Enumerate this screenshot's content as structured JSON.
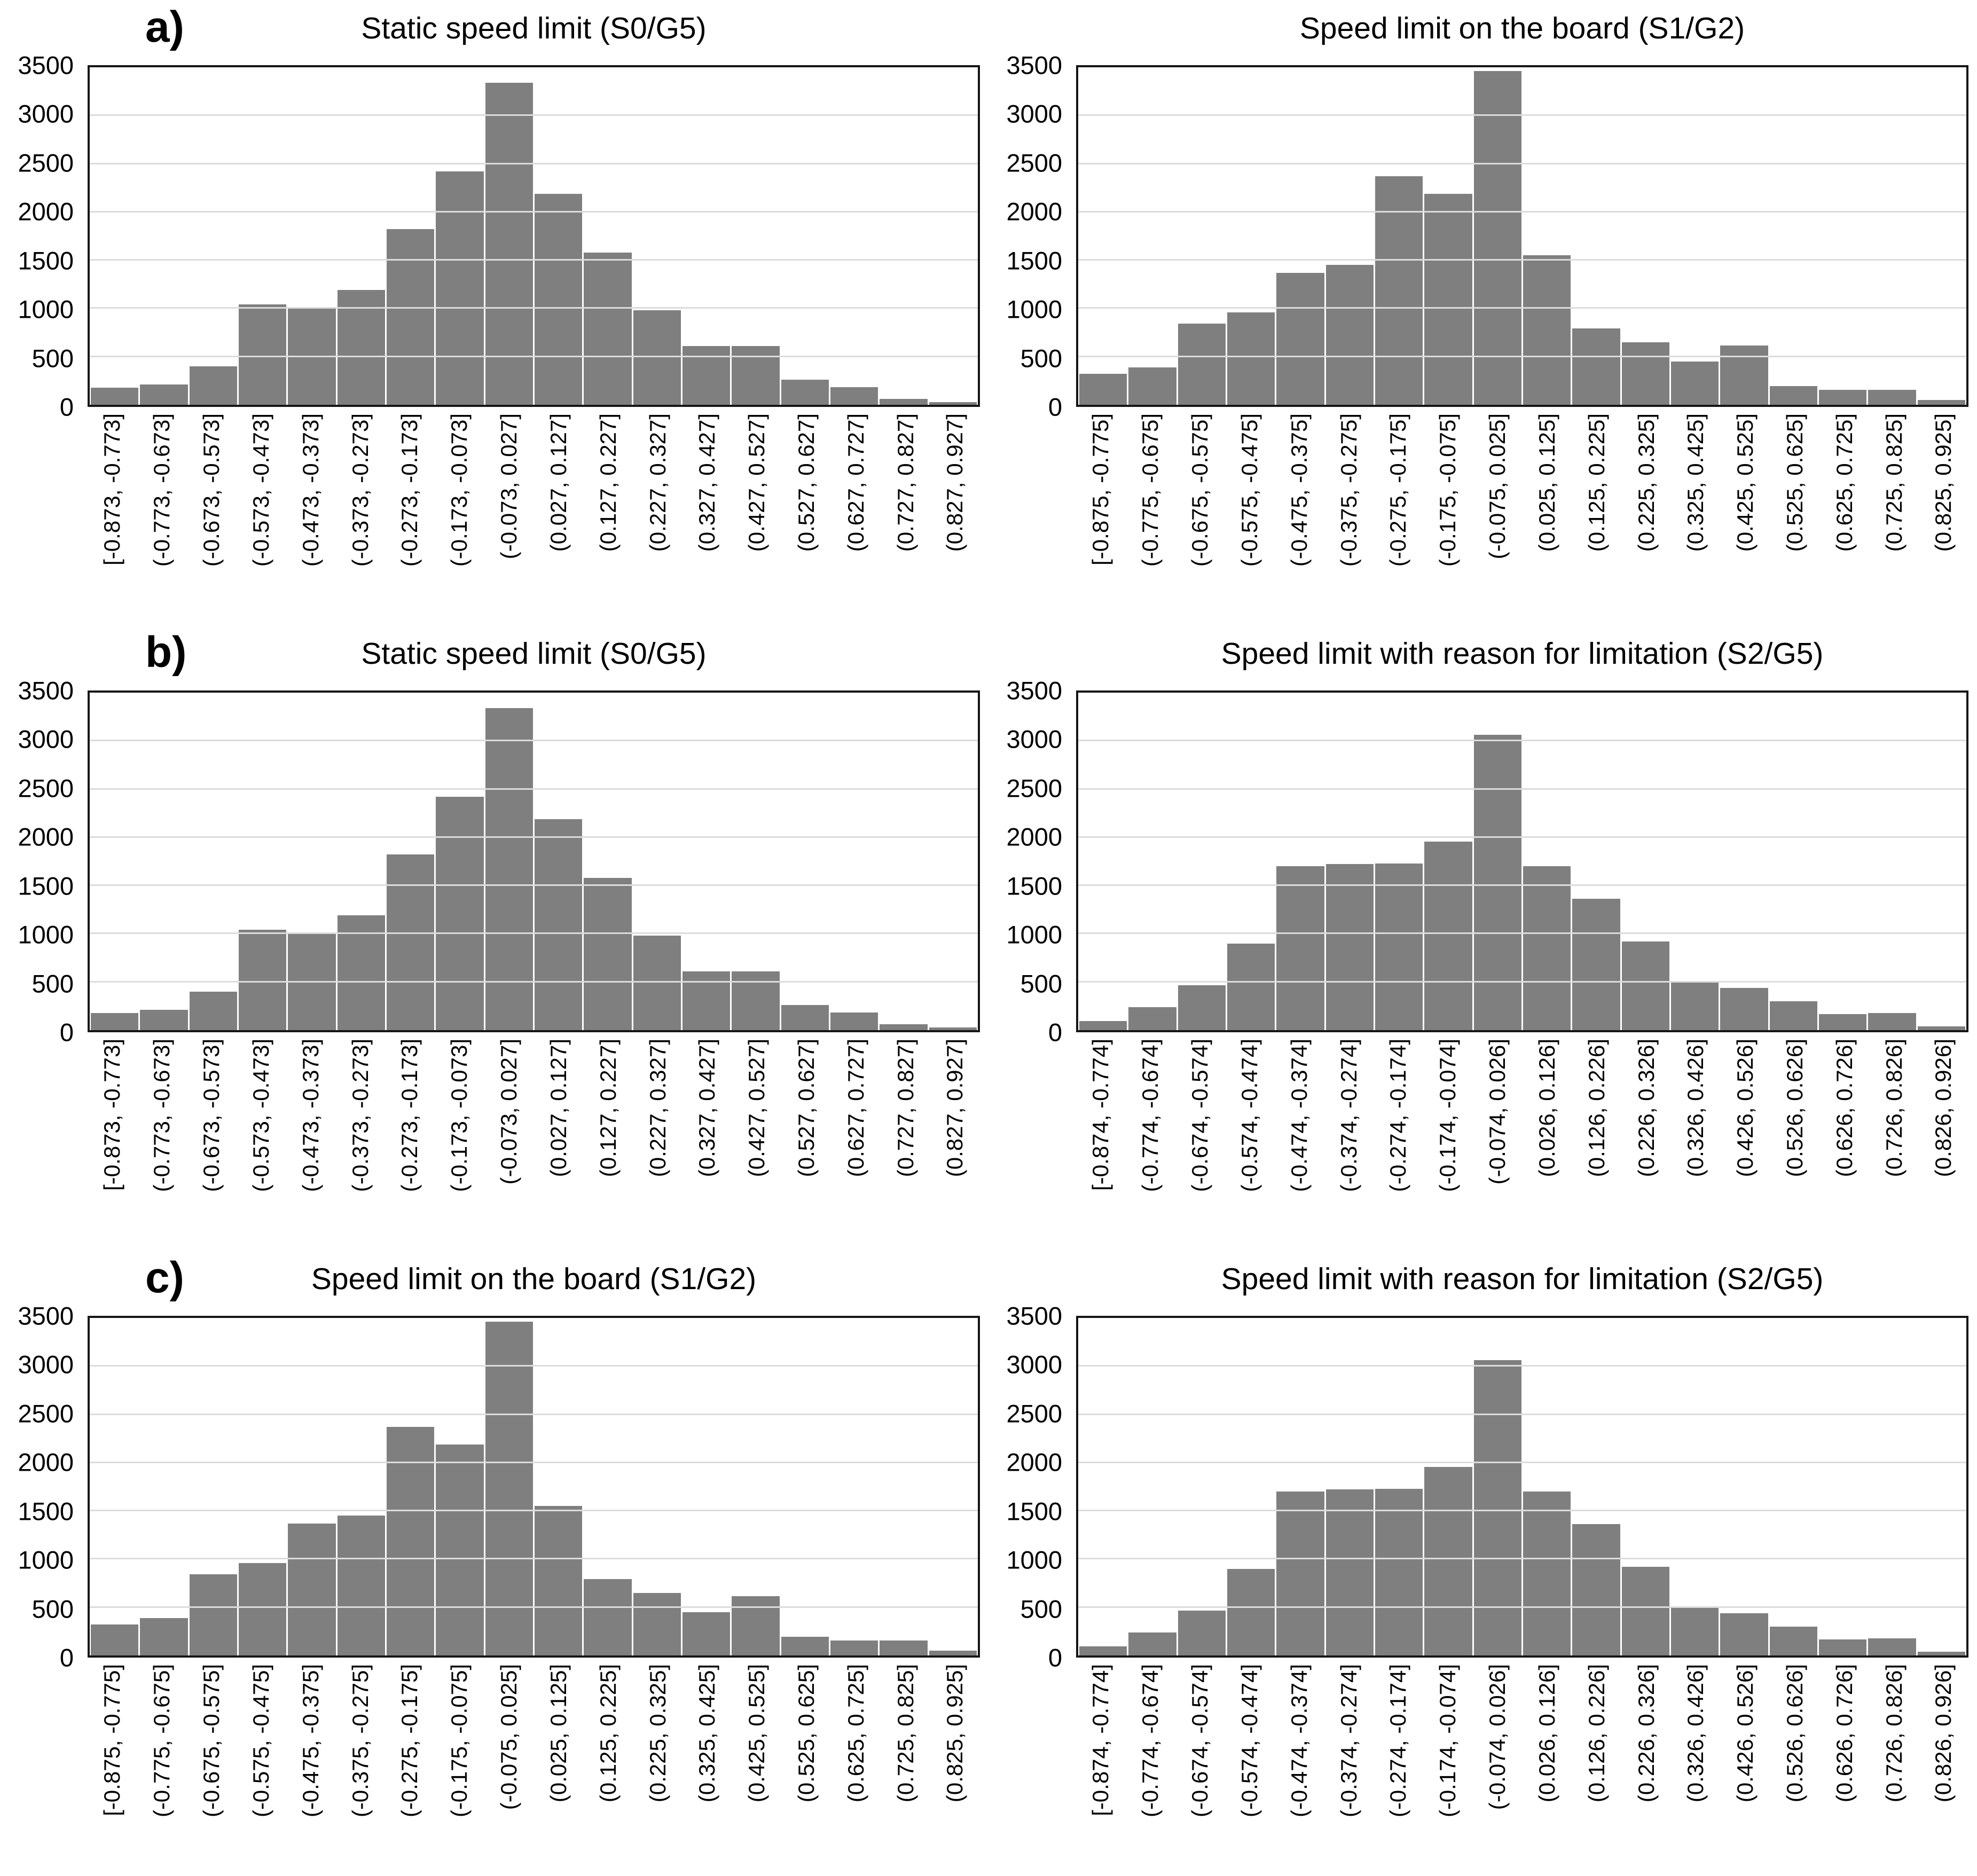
{
  "figure": {
    "background": "#ffffff",
    "bar_color": "#7f7f7f",
    "gridline_color": "#dcdcdc",
    "border_color": "#161616",
    "rows": [
      "a)",
      "b)",
      "c)"
    ]
  },
  "chart_data": [
    {
      "id": "a-left",
      "panel_label": "a)",
      "type": "bar",
      "title": "Static speed limit (S0/G5)",
      "categories": [
        "[-0.873, -0.773]",
        "(-0.773, -0.673]",
        "(-0.673, -0.573]",
        "(-0.573, -0.473]",
        "(-0.473, -0.373]",
        "(-0.373, -0.273]",
        "(-0.273, -0.173]",
        "(-0.173, -0.073]",
        "(-0.073, 0.027]",
        "(0.027, 0.127]",
        "(0.127, 0.227]",
        "(0.227, 0.327]",
        "(0.327, 0.427]",
        "(0.427, 0.527]",
        "(0.527, 0.627]",
        "(0.627, 0.727]",
        "(0.727, 0.827]",
        "(0.827, 0.927]"
      ],
      "values": [
        180,
        210,
        400,
        1040,
        1005,
        1190,
        1820,
        2420,
        3340,
        2190,
        1580,
        980,
        610,
        610,
        260,
        185,
        60,
        30
      ],
      "xlabel": "",
      "ylabel": "",
      "ylim": [
        0,
        3500
      ],
      "ytick_step": 500,
      "yticks": [
        3500,
        3000,
        2500,
        2000,
        1500,
        1000,
        500,
        0
      ],
      "grid": true,
      "legend": "none",
      "bar_color": "#7f7f7f"
    },
    {
      "id": "a-right",
      "panel_label": "",
      "type": "bar",
      "title": "Speed limit on the board (S1/G2)",
      "categories": [
        "[-0.875, -0.775]",
        "(-0.775, -0.675]",
        "(-0.675, -0.575]",
        "(-0.575, -0.475]",
        "(-0.475, -0.375]",
        "(-0.375, -0.275]",
        "(-0.275, -0.175]",
        "(-0.175, -0.075]",
        "(-0.075, 0.025]",
        "(0.025, 0.125]",
        "(0.125, 0.225]",
        "(0.225, 0.325]",
        "(0.325, 0.425]",
        "(0.425, 0.525]",
        "(0.525, 0.625]",
        "(0.625, 0.725]",
        "(0.725, 0.825]",
        "(0.825, 0.925]"
      ],
      "values": [
        320,
        390,
        840,
        960,
        1370,
        1450,
        2370,
        2190,
        3460,
        1550,
        790,
        650,
        450,
        615,
        195,
        155,
        155,
        50
      ],
      "xlabel": "",
      "ylabel": "",
      "ylim": [
        0,
        3500
      ],
      "ytick_step": 500,
      "yticks": [
        3500,
        3000,
        2500,
        2000,
        1500,
        1000,
        500,
        0
      ],
      "grid": true,
      "legend": "none",
      "bar_color": "#7f7f7f"
    },
    {
      "id": "b-left",
      "panel_label": "b)",
      "type": "bar",
      "title": "Static speed limit (S0/G5)",
      "categories": [
        "[-0.873, -0.773]",
        "(-0.773, -0.673]",
        "(-0.673, -0.573]",
        "(-0.573, -0.473]",
        "(-0.473, -0.373]",
        "(-0.373, -0.273]",
        "(-0.273, -0.173]",
        "(-0.173, -0.073]",
        "(-0.073, 0.027]",
        "(0.027, 0.127]",
        "(0.127, 0.227]",
        "(0.227, 0.327]",
        "(0.327, 0.427]",
        "(0.427, 0.527]",
        "(0.527, 0.627]",
        "(0.627, 0.727]",
        "(0.727, 0.827]",
        "(0.827, 0.927]"
      ],
      "values": [
        180,
        210,
        400,
        1040,
        1005,
        1190,
        1820,
        2420,
        3340,
        2190,
        1580,
        980,
        610,
        610,
        260,
        185,
        60,
        30
      ],
      "xlabel": "",
      "ylabel": "",
      "ylim": [
        0,
        3500
      ],
      "ytick_step": 500,
      "yticks": [
        3500,
        3000,
        2500,
        2000,
        1500,
        1000,
        500,
        0
      ],
      "grid": true,
      "legend": "none",
      "bar_color": "#7f7f7f"
    },
    {
      "id": "b-right",
      "panel_label": "",
      "type": "bar",
      "title": "Speed limit with reason for limitation (S2/G5)",
      "categories": [
        "[-0.874, -0.774]",
        "(-0.774, -0.674]",
        "(-0.674, -0.574]",
        "(-0.574, -0.474]",
        "(-0.474, -0.374]",
        "(-0.374, -0.274]",
        "(-0.274, -0.174]",
        "(-0.174, -0.074]",
        "(-0.074, 0.026]",
        "(0.026, 0.126]",
        "(0.126, 0.226]",
        "(0.226, 0.326]",
        "(0.326, 0.426]",
        "(0.426, 0.526]",
        "(0.526, 0.626]",
        "(0.626, 0.726]",
        "(0.726, 0.826]",
        "(0.826, 0.926]"
      ],
      "values": [
        95,
        240,
        465,
        900,
        1700,
        1720,
        1730,
        1955,
        3065,
        1700,
        1365,
        920,
        510,
        435,
        300,
        165,
        180,
        40
      ],
      "xlabel": "",
      "ylabel": "",
      "ylim": [
        0,
        3500
      ],
      "ytick_step": 500,
      "yticks": [
        3500,
        3000,
        2500,
        2000,
        1500,
        1000,
        500,
        0
      ],
      "grid": true,
      "legend": "none",
      "bar_color": "#7f7f7f"
    },
    {
      "id": "c-left",
      "panel_label": "c)",
      "type": "bar",
      "title": "Speed limit on the board (S1/G2)",
      "categories": [
        "[-0.875, -0.775]",
        "(-0.775, -0.675]",
        "(-0.675, -0.575]",
        "(-0.575, -0.475]",
        "(-0.475, -0.375]",
        "(-0.375, -0.275]",
        "(-0.275, -0.175]",
        "(-0.175, -0.075]",
        "(-0.075, 0.025]",
        "(0.025, 0.125]",
        "(0.125, 0.225]",
        "(0.225, 0.325]",
        "(0.325, 0.425]",
        "(0.425, 0.525]",
        "(0.525, 0.625]",
        "(0.625, 0.725]",
        "(0.725, 0.825]",
        "(0.825, 0.925]"
      ],
      "values": [
        320,
        390,
        840,
        960,
        1370,
        1450,
        2370,
        2190,
        3460,
        1550,
        790,
        650,
        450,
        615,
        195,
        155,
        155,
        50
      ],
      "xlabel": "",
      "ylabel": "",
      "ylim": [
        0,
        3500
      ],
      "ytick_step": 500,
      "yticks": [
        3500,
        3000,
        2500,
        2000,
        1500,
        1000,
        500,
        0
      ],
      "grid": true,
      "legend": "none",
      "bar_color": "#7f7f7f"
    },
    {
      "id": "c-right",
      "panel_label": "",
      "type": "bar",
      "title": "Speed limit with reason for limitation (S2/G5)",
      "categories": [
        "[-0.874, -0.774]",
        "(-0.774, -0.674]",
        "(-0.674, -0.574]",
        "(-0.574, -0.474]",
        "(-0.474, -0.374]",
        "(-0.374, -0.274]",
        "(-0.274, -0.174]",
        "(-0.174, -0.074]",
        "(-0.074, 0.026]",
        "(0.026, 0.126]",
        "(0.126, 0.226]",
        "(0.226, 0.326]",
        "(0.326, 0.426]",
        "(0.426, 0.526]",
        "(0.526, 0.626]",
        "(0.626, 0.726]",
        "(0.726, 0.826]",
        "(0.826, 0.926]"
      ],
      "values": [
        95,
        240,
        465,
        900,
        1700,
        1720,
        1730,
        1955,
        3065,
        1700,
        1365,
        920,
        510,
        435,
        300,
        165,
        180,
        40
      ],
      "xlabel": "",
      "ylabel": "",
      "ylim": [
        0,
        3500
      ],
      "ytick_step": 500,
      "yticks": [
        3500,
        3000,
        2500,
        2000,
        1500,
        1000,
        500,
        0
      ],
      "grid": true,
      "legend": "none",
      "bar_color": "#7f7f7f"
    }
  ]
}
